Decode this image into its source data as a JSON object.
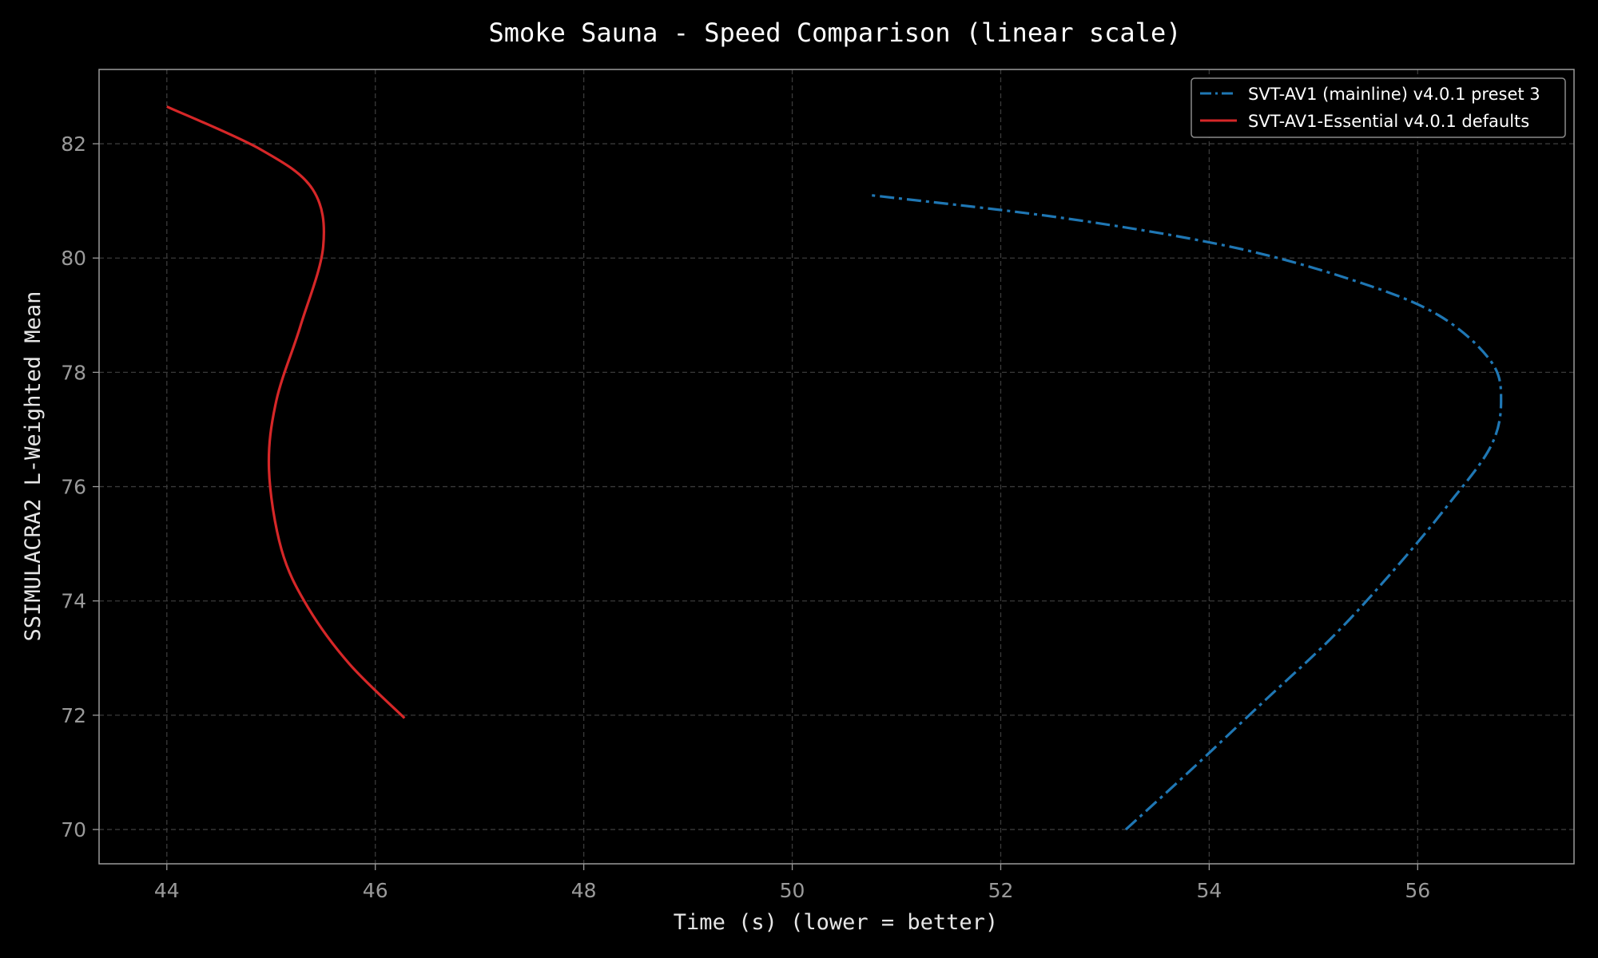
{
  "chart_data": {
    "type": "line",
    "title": "Smoke Sauna - Speed Comparison (linear scale)",
    "xlabel": "Time (s) (lower = better)",
    "ylabel": "SSIMULACRA2 L-Weighted Mean",
    "xlim": [
      43.35,
      57.5
    ],
    "ylim": [
      69.4,
      83.3
    ],
    "x_ticks": [
      44,
      46,
      48,
      50,
      52,
      54,
      56
    ],
    "y_ticks": [
      70,
      72,
      74,
      76,
      78,
      80,
      82
    ],
    "grid": true,
    "legend_position": "top-right",
    "series": [
      {
        "name": "SVT-AV1 (mainline) v4.0.1 preset 3",
        "color": "#1f77b4",
        "line_style": "dash-dot",
        "x": [
          53.2,
          53.8,
          54.5,
          55.2,
          55.8,
          56.3,
          56.7,
          56.8,
          56.7,
          56.2,
          55.4,
          54.2,
          52.6,
          50.75
        ],
        "y": [
          70.0,
          71.0,
          72.2,
          73.4,
          74.6,
          75.7,
          76.7,
          77.5,
          78.2,
          79.0,
          79.6,
          80.2,
          80.7,
          81.1
        ]
      },
      {
        "name": "SVT-AV1-Essential v4.0.1 defaults",
        "color": "#d62728",
        "line_style": "solid",
        "x": [
          46.28,
          45.75,
          45.35,
          45.1,
          44.98,
          45.05,
          45.28,
          45.5,
          45.4,
          44.9,
          44.0
        ],
        "y": [
          71.95,
          72.9,
          73.9,
          74.9,
          76.3,
          77.5,
          78.8,
          80.2,
          81.2,
          81.9,
          82.65
        ]
      }
    ]
  }
}
